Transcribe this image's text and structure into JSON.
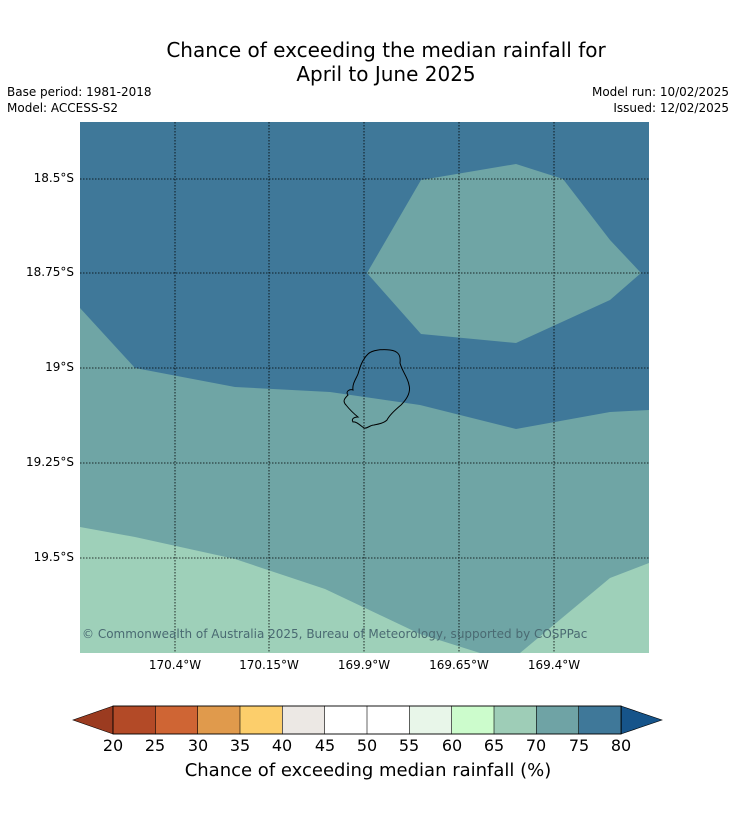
{
  "title_line1": "Chance of exceeding the median rainfall for",
  "title_line2": "April to June 2025",
  "meta_left": {
    "base_period": "Base period: 1981-2018",
    "model": "Model: ACCESS-S2"
  },
  "meta_right": {
    "model_run": "Model run: 10/02/2025",
    "issued": "Issued: 12/02/2025"
  },
  "map": {
    "copyright": "© Commonwealth of Australia 2025, Bureau of Meteorology, supported by COSPPac",
    "lat_labels": [
      "18.5°S",
      "18.75°S",
      "19°S",
      "19.25°S",
      "19.5°S"
    ],
    "lon_labels": [
      "170.4°W",
      "170.15°W",
      "169.9°W",
      "169.65°W",
      "169.4°W"
    ],
    "region_colors": {
      "75_80": "#3f7899",
      "70_75": "#6fa5a5",
      "65_70": "#9ed0b9"
    }
  },
  "colorbar": {
    "ticks": [
      "20",
      "25",
      "30",
      "35",
      "40",
      "45",
      "50",
      "55",
      "60",
      "65",
      "70",
      "75",
      "80"
    ],
    "colors": [
      "#b34a27",
      "#cf6534",
      "#e09a4c",
      "#fcce6b",
      "#ece8e4",
      "#ffffff",
      "#ffffff",
      "#e8f6e9",
      "#ccfccc",
      "#9ecdb7",
      "#6fa3a5",
      "#3f7899"
    ],
    "under_color": "#9b3b20",
    "over_color": "#16548a",
    "label": "Chance of exceeding median rainfall (%)"
  }
}
